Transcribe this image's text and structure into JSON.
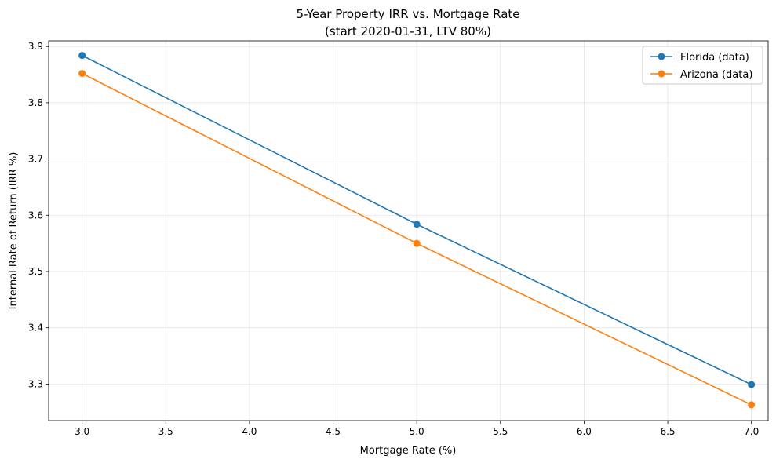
{
  "chart_data": {
    "type": "line",
    "title": "5-Year Property IRR vs. Mortgage Rate",
    "subtitle": "(start 2020-01-31, LTV 80%)",
    "xlabel": "Mortgage Rate (%)",
    "ylabel": "Internal Rate of Return (IRR %)",
    "xlim": [
      2.8,
      7.1
    ],
    "ylim": [
      3.235,
      3.91
    ],
    "xticks": [
      3.0,
      3.5,
      4.0,
      4.5,
      5.0,
      5.5,
      6.0,
      6.5,
      7.0
    ],
    "xtick_labels": [
      "3.0",
      "3.5",
      "4.0",
      "4.5",
      "5.0",
      "5.5",
      "6.0",
      "6.5",
      "7.0"
    ],
    "yticks": [
      3.3,
      3.4,
      3.5,
      3.6,
      3.7,
      3.8,
      3.9
    ],
    "ytick_labels": [
      "3.3",
      "3.4",
      "3.5",
      "3.6",
      "3.7",
      "3.8",
      "3.9"
    ],
    "grid": true,
    "legend_position": "top-right",
    "x": [
      3.0,
      5.0,
      7.0
    ],
    "series": [
      {
        "name": "Florida (data)",
        "color": "#1f77b4",
        "values": [
          3.884,
          3.584,
          3.299
        ]
      },
      {
        "name": "Arizona (data)",
        "color": "#ff7f0e",
        "values": [
          3.852,
          3.55,
          3.263
        ]
      }
    ]
  }
}
